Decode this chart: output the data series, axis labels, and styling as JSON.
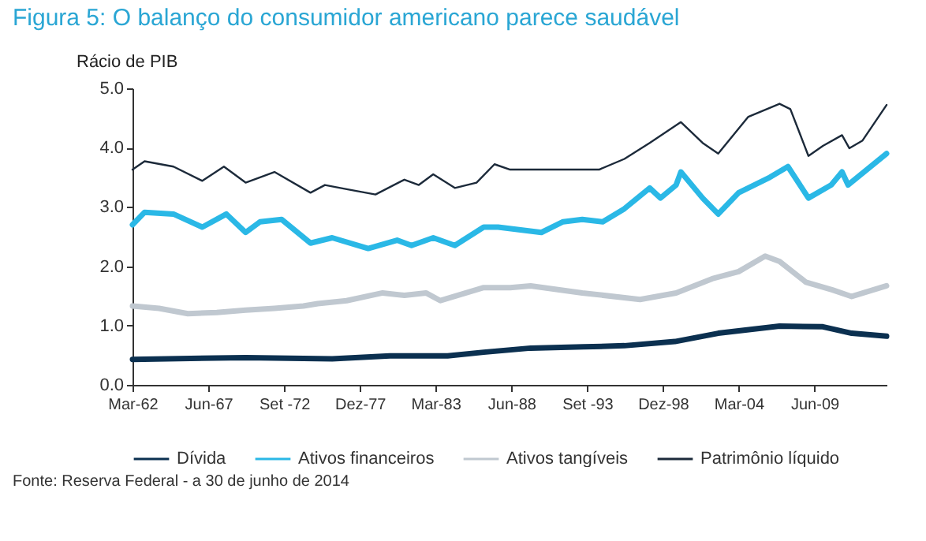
{
  "chart_data": {
    "type": "line",
    "title": "Figura 5: O balanço do consumidor americano parece saudável",
    "ylabel": "Rácio de PIB",
    "annotations": [
      "Fonte: Reserva Federal - a 30 de junho de 2014"
    ],
    "xlim": [
      "1962-03",
      "2014-06"
    ],
    "xticks": [
      {
        "value": "1962-03",
        "label": "Mar-62"
      },
      {
        "value": "1967-06",
        "label": "Jun-67"
      },
      {
        "value": "1972-09",
        "label": "Set -72"
      },
      {
        "value": "1977-12",
        "label": "Dez-77"
      },
      {
        "value": "1983-03",
        "label": "Mar-83"
      },
      {
        "value": "1988-06",
        "label": "Jun-88"
      },
      {
        "value": "1993-09",
        "label": "Set -93"
      },
      {
        "value": "1998-12",
        "label": "Dez-98"
      },
      {
        "value": "2004-03",
        "label": "Mar-04"
      },
      {
        "value": "2009-06",
        "label": "Jun-09"
      }
    ],
    "ylim": [
      0,
      5
    ],
    "yticks": [
      {
        "value": 0,
        "label": "0.0"
      },
      {
        "value": 1,
        "label": "1.0"
      },
      {
        "value": 2,
        "label": "2.0"
      },
      {
        "value": 3,
        "label": "3.0"
      },
      {
        "value": 4,
        "label": "4.0"
      },
      {
        "value": 5,
        "label": "5.0"
      }
    ],
    "grid": false,
    "legend": "bottom",
    "line_style": "solid",
    "marker": "none",
    "series": [
      {
        "name": "Dívida",
        "color": "#0b3050",
        "x": [
          "1962-03",
          "1970-01",
          "1976-01",
          "1980-01",
          "1984-01",
          "1986-07",
          "1989-10",
          "1993-06",
          "1996-04",
          "1999-10",
          "2002-10",
          "2007-01",
          "2010-01",
          "2012-01",
          "2014-06"
        ],
        "values": [
          0.43,
          0.46,
          0.44,
          0.49,
          0.49,
          0.55,
          0.62,
          0.64,
          0.66,
          0.73,
          0.87,
          0.99,
          0.98,
          0.87,
          0.82
        ]
      },
      {
        "name": "Ativos financeiros",
        "color": "#2ab8e6",
        "x": [
          "1962-03",
          "1963-01",
          "1965-01",
          "1967-01",
          "1968-09",
          "1970-01",
          "1971-01",
          "1972-07",
          "1974-07",
          "1976-01",
          "1978-07",
          "1980-07",
          "1981-07",
          "1983-01",
          "1984-07",
          "1986-07",
          "1987-07",
          "1990-07",
          "1992-01",
          "1993-05",
          "1994-10",
          "1996-04",
          "1998-01",
          "1998-10",
          "1999-11",
          "2000-03",
          "2001-09",
          "2002-10",
          "2004-03",
          "2006-05",
          "2007-08",
          "2009-01",
          "2010-08",
          "2011-05",
          "2011-10",
          "2014-06"
        ],
        "values": [
          2.7,
          2.91,
          2.88,
          2.66,
          2.88,
          2.57,
          2.75,
          2.79,
          2.39,
          2.48,
          2.3,
          2.44,
          2.35,
          2.48,
          2.35,
          2.66,
          2.66,
          2.57,
          2.75,
          2.79,
          2.75,
          2.97,
          3.32,
          3.15,
          3.37,
          3.59,
          3.15,
          2.88,
          3.24,
          3.5,
          3.68,
          3.15,
          3.37,
          3.59,
          3.37,
          3.9
        ]
      },
      {
        "name": "Ativos tangíveis",
        "color": "#c0c8d0",
        "x": [
          "1962-03",
          "1964-01",
          "1966-01",
          "1968-01",
          "1970-01",
          "1972-01",
          "1974-01",
          "1975-01",
          "1977-01",
          "1979-07",
          "1981-01",
          "1982-07",
          "1983-07",
          "1986-07",
          "1988-05",
          "1989-10",
          "1993-05",
          "1997-05",
          "1999-11",
          "2002-05",
          "2004-03",
          "2006-01",
          "2007-01",
          "2008-11",
          "2010-09",
          "2012-01",
          "2014-06"
        ],
        "values": [
          1.33,
          1.29,
          1.2,
          1.22,
          1.26,
          1.29,
          1.33,
          1.37,
          1.42,
          1.55,
          1.51,
          1.55,
          1.42,
          1.64,
          1.64,
          1.67,
          1.55,
          1.44,
          1.55,
          1.79,
          1.91,
          2.17,
          2.08,
          1.73,
          1.6,
          1.49,
          1.67
        ]
      },
      {
        "name": "Patrimônio líquido",
        "color": "#1c2a3a",
        "x": [
          "1962-03",
          "1963-01",
          "1965-01",
          "1967-01",
          "1968-07",
          "1970-01",
          "1972-01",
          "1974-07",
          "1975-07",
          "1977-01",
          "1979-01",
          "1981-01",
          "1982-01",
          "1983-01",
          "1984-07",
          "1986-01",
          "1987-04",
          "1988-05",
          "1990-07",
          "1994-07",
          "1996-04",
          "1998-01",
          "2000-03",
          "2001-09",
          "2002-10",
          "2004-11",
          "2007-01",
          "2007-10",
          "2009-01",
          "2010-01",
          "2011-05",
          "2011-11",
          "2012-10",
          "2014-06"
        ],
        "values": [
          3.63,
          3.77,
          3.68,
          3.44,
          3.68,
          3.41,
          3.59,
          3.24,
          3.37,
          3.3,
          3.21,
          3.46,
          3.37,
          3.55,
          3.32,
          3.41,
          3.72,
          3.63,
          3.63,
          3.63,
          3.81,
          4.08,
          4.43,
          4.08,
          3.9,
          4.52,
          4.74,
          4.65,
          3.86,
          4.03,
          4.21,
          3.99,
          4.12,
          4.72
        ]
      }
    ]
  }
}
